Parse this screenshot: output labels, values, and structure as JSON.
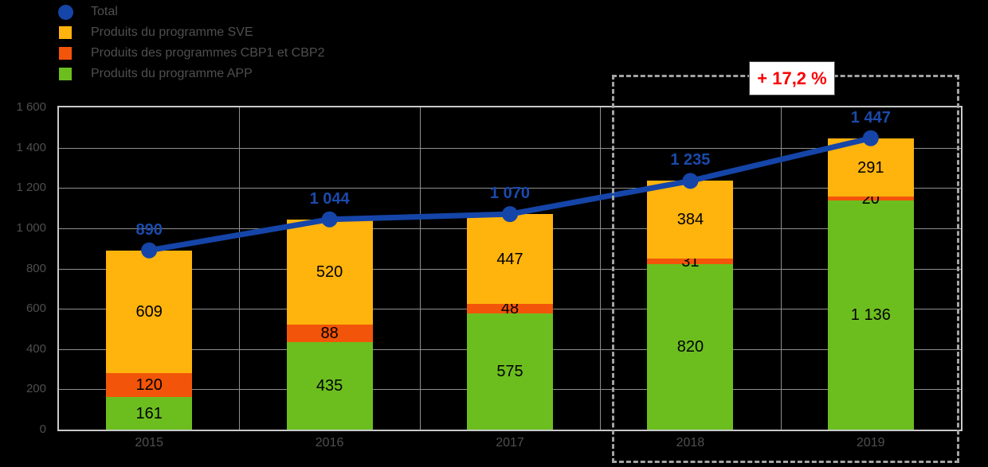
{
  "colors": {
    "total_line": "#1545A8",
    "total_label": "#1B4AAC",
    "sve_yellow": "#FFB30D",
    "cb_orange": "#F2550A",
    "app_green": "#6CBE1F",
    "gridline": "#8F8F8F",
    "plot_border": "#C9C9C9",
    "axis_text": "#4F4F4F",
    "highlight_border": "#A3A3A3",
    "annotation_red": "#FA0000",
    "background": "#000000"
  },
  "legend": {
    "items": [
      {
        "label": "Total",
        "shape": "circle",
        "color": "#1545A8"
      },
      {
        "label": "Produits du programme SVE",
        "shape": "square",
        "color": "#FFB30D"
      },
      {
        "label": "Produits des programmes CBP1 et CBP2",
        "shape": "square",
        "color": "#F2550A"
      },
      {
        "label": "Produits du programme APP",
        "shape": "square",
        "color": "#6CBE1F"
      }
    ]
  },
  "annotation": {
    "text": "+ 17,2 %"
  },
  "chart_data": {
    "type": "bar",
    "subtype": "stacked-bars-with-total-line",
    "title": "",
    "xlabel": "",
    "ylabel": "",
    "categories": [
      "2015",
      "2016",
      "2017",
      "2018",
      "2019"
    ],
    "series": [
      {
        "name": "Produits du programme APP",
        "role": "bar-stack-bottom",
        "color": "#6CBE1F",
        "values": [
          161,
          435,
          575,
          820,
          1136
        ]
      },
      {
        "name": "Produits des programmes CBP1 et CBP2",
        "role": "bar-stack-middle",
        "color": "#F2550A",
        "values": [
          120,
          88,
          48,
          31,
          20
        ]
      },
      {
        "name": "Produits du programme SVE",
        "role": "bar-stack-top",
        "color": "#FFB30D",
        "values": [
          609,
          520,
          447,
          384,
          291
        ]
      }
    ],
    "line": {
      "name": "Total",
      "color": "#1545A8",
      "values": [
        890,
        1044,
        1070,
        1235,
        1447
      ]
    },
    "ylim": [
      0,
      1600
    ],
    "ytick_step": 200,
    "ytick_labels": [
      "0",
      "200",
      "400",
      "600",
      "800",
      "1 000",
      "1 200",
      "1 400",
      "1 600"
    ],
    "grid": true,
    "legend_position": "top-left",
    "highlight": {
      "categories": [
        "2018",
        "2019"
      ],
      "label": "+ 17,2 %"
    },
    "number_format": "french-space-thousands"
  }
}
